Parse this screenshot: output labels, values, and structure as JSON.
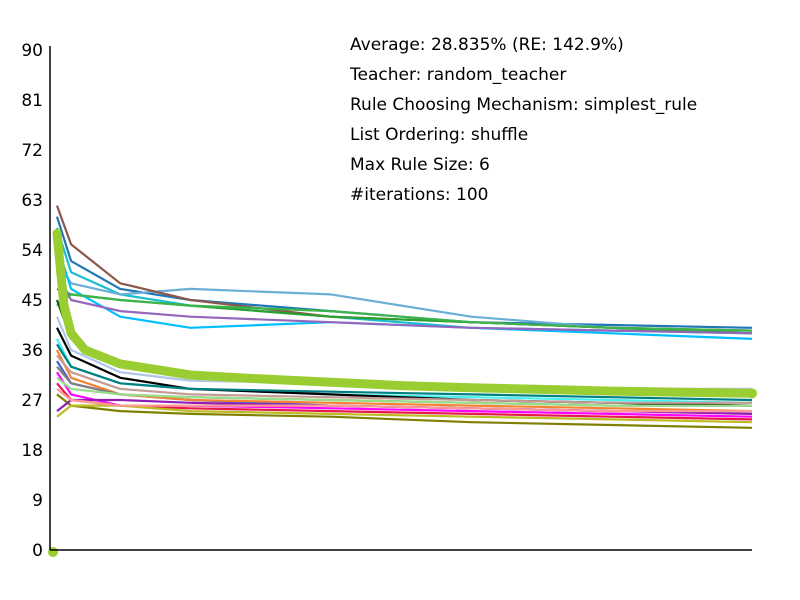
{
  "chart_data": {
    "type": "line",
    "title": "",
    "xlabel": "",
    "ylabel": "",
    "ylim": [
      0,
      90
    ],
    "yticks": [
      "0",
      "9",
      "18",
      "27",
      "36",
      "45",
      "54",
      "63",
      "72",
      "81",
      "90"
    ],
    "x_range": [
      0,
      100
    ],
    "grid": false,
    "legend": "none",
    "annotations": [
      "Average: 28.835% (RE: 142.9%)",
      "Teacher: random_teacher",
      "Rule Choosing Mechanism: simplest_rule",
      "List Ordering: shuffle",
      "Max Rule Size: 6",
      "#iterations: 100"
    ],
    "average_series": {
      "color": "#9acd32",
      "x": [
        0,
        1,
        2,
        3,
        5,
        10,
        20,
        30,
        40,
        50,
        60,
        70,
        80,
        90,
        100
      ],
      "y": [
        0,
        57,
        44,
        39,
        36,
        33.5,
        31.5,
        30.8,
        30.2,
        29.6,
        29.2,
        28.9,
        28.6,
        28.4,
        28.2
      ]
    },
    "series": [
      {
        "color": "#1f77b4",
        "x": [
          1,
          3,
          10,
          20,
          40,
          60,
          80,
          100
        ],
        "y": [
          60,
          52,
          47,
          45,
          43,
          41,
          40.5,
          40
        ]
      },
      {
        "color": "#17becf",
        "x": [
          1,
          3,
          10,
          20,
          40,
          60,
          80,
          100
        ],
        "y": [
          58,
          50,
          46,
          44,
          42,
          40,
          39.5,
          39
        ]
      },
      {
        "color": "#6baed6",
        "x": [
          1,
          3,
          10,
          20,
          40,
          60,
          80,
          100
        ],
        "y": [
          52,
          48,
          46,
          47,
          46,
          42,
          40,
          39
        ]
      },
      {
        "color": "#8c564b",
        "x": [
          1,
          3,
          10,
          20,
          40,
          60,
          80,
          100
        ],
        "y": [
          62,
          55,
          48,
          45,
          42,
          41,
          40,
          39.5
        ]
      },
      {
        "color": "#2ca02c",
        "x": [
          1,
          3,
          10,
          20,
          40,
          60,
          80,
          100
        ],
        "y": [
          47,
          46,
          45,
          44,
          42,
          41,
          40,
          39
        ]
      },
      {
        "color": "#00bfff",
        "x": [
          1,
          3,
          10,
          20,
          40,
          60,
          80,
          100
        ],
        "y": [
          55,
          47,
          42,
          40,
          41,
          40,
          39,
          38
        ]
      },
      {
        "color": "#9467bd",
        "x": [
          1,
          3,
          10,
          20,
          40,
          60,
          80,
          100
        ],
        "y": [
          50,
          45,
          43,
          42,
          41,
          40,
          39.5,
          39
        ]
      },
      {
        "color": "#3cb44b",
        "x": [
          1,
          3,
          10,
          20,
          40,
          60,
          80,
          100
        ],
        "y": [
          44,
          46,
          45,
          44,
          43,
          41,
          40,
          39.5
        ]
      },
      {
        "color": "#ff00ff",
        "x": [
          1,
          3,
          10,
          20,
          40,
          60,
          80,
          100
        ],
        "y": [
          32,
          28,
          26,
          26,
          25.5,
          25,
          24.5,
          24
        ]
      },
      {
        "color": "#e6194b",
        "x": [
          1,
          3,
          10,
          20,
          40,
          60,
          80,
          100
        ],
        "y": [
          30,
          27,
          26,
          25.5,
          25,
          24.5,
          24,
          23.5
        ]
      },
      {
        "color": "#4363d8",
        "x": [
          1,
          3,
          10,
          20,
          40,
          60,
          80,
          100
        ],
        "y": [
          34,
          30,
          28,
          27,
          26,
          25.5,
          25,
          25
        ]
      },
      {
        "color": "#808000",
        "x": [
          1,
          3,
          10,
          20,
          40,
          60,
          80,
          100
        ],
        "y": [
          28,
          26,
          25,
          24.5,
          24,
          23,
          22.5,
          22
        ]
      },
      {
        "color": "#f58231",
        "x": [
          1,
          3,
          10,
          20,
          40,
          60,
          80,
          100
        ],
        "y": [
          36,
          31,
          28,
          27,
          26.5,
          26,
          25.5,
          25
        ]
      },
      {
        "color": "#911eb4",
        "x": [
          1,
          3,
          10,
          20,
          40,
          60,
          80,
          100
        ],
        "y": [
          25,
          27,
          27,
          26.5,
          26,
          25.5,
          25,
          24.5
        ]
      },
      {
        "color": "#46f0f0",
        "x": [
          1,
          3,
          10,
          20,
          40,
          60,
          80,
          100
        ],
        "y": [
          38,
          33,
          30,
          29,
          28,
          27.5,
          27,
          26.5
        ]
      },
      {
        "color": "#bcbd22",
        "x": [
          1,
          3,
          10,
          20,
          40,
          60,
          80,
          100
        ],
        "y": [
          24,
          26,
          26,
          25,
          24.5,
          24,
          23.5,
          23
        ]
      },
      {
        "color": "#000000",
        "x": [
          1,
          3,
          10,
          20,
          40,
          60,
          80,
          100
        ],
        "y": [
          40,
          35,
          31,
          29,
          28,
          27,
          26.5,
          26
        ]
      },
      {
        "color": "#aec7e8",
        "x": [
          1,
          3,
          10,
          20,
          40,
          60,
          80,
          100
        ],
        "y": [
          42,
          36,
          32,
          30.5,
          30,
          29.5,
          29,
          29
        ]
      },
      {
        "color": "#ff9896",
        "x": [
          1,
          3,
          10,
          20,
          40,
          60,
          80,
          100
        ],
        "y": [
          29,
          27,
          26,
          26,
          26,
          25.5,
          25,
          25
        ]
      },
      {
        "color": "#7f7f7f",
        "x": [
          1,
          3,
          10,
          20,
          40,
          60,
          80,
          100
        ],
        "y": [
          33,
          30,
          28,
          27.5,
          27,
          26.5,
          26,
          26
        ]
      },
      {
        "color": "#008080",
        "x": [
          1,
          3,
          10,
          20,
          40,
          60,
          80,
          100
        ],
        "y": [
          37,
          33,
          30,
          29,
          28.5,
          28,
          27.5,
          27
        ]
      },
      {
        "color": "#c49c94",
        "x": [
          1,
          3,
          10,
          20,
          40,
          60,
          80,
          100
        ],
        "y": [
          35,
          32,
          29,
          28,
          27.5,
          27,
          26.5,
          26.5
        ]
      },
      {
        "color": "#006400",
        "x": [
          1,
          3,
          10,
          20,
          40,
          60,
          80,
          100
        ],
        "y": [
          45,
          38,
          33,
          31,
          30,
          29,
          28.5,
          28
        ]
      },
      {
        "color": "#98df8a",
        "x": [
          1,
          3,
          10,
          20,
          40,
          60,
          80,
          100
        ],
        "y": [
          31,
          29,
          28,
          27.5,
          27,
          26.5,
          26,
          26
        ]
      }
    ]
  }
}
